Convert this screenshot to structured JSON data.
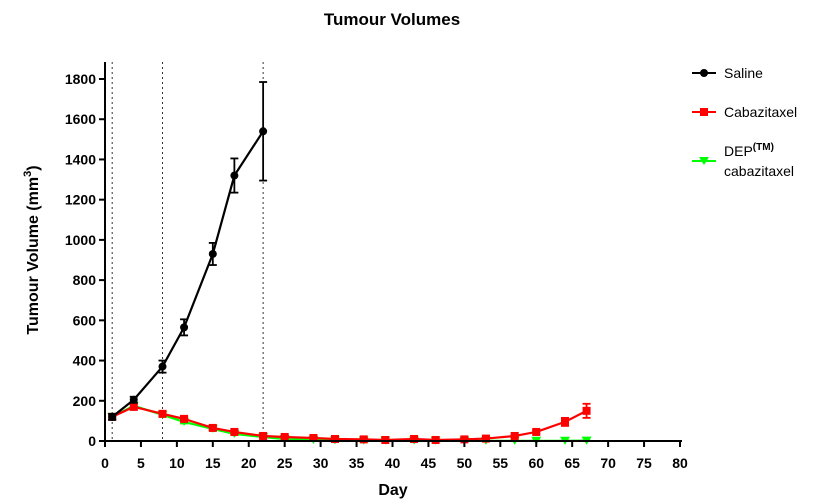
{
  "chart_data": {
    "type": "line",
    "title": "Tumour Volumes",
    "xlabel": "Day",
    "ylabel": "Tumour Volume (mm",
    "ylabel_sup": "3",
    "ylabel_close": ")",
    "xlim": [
      0,
      80
    ],
    "ylim": [
      0,
      1800
    ],
    "xticks": [
      0,
      5,
      10,
      15,
      20,
      25,
      30,
      35,
      40,
      45,
      50,
      55,
      60,
      65,
      70,
      75,
      80
    ],
    "yticks": [
      0,
      200,
      400,
      600,
      800,
      1000,
      1200,
      1400,
      1600,
      1800
    ],
    "reference_lines_x": [
      1,
      8,
      22
    ],
    "grid": false,
    "legend_position": "right",
    "series": [
      {
        "name": "Saline",
        "color": "#000000",
        "marker": "circle",
        "x": [
          1,
          4,
          8,
          11,
          15,
          18,
          22
        ],
        "y": [
          120,
          205,
          370,
          565,
          930,
          1320,
          1540
        ],
        "err": [
          15,
          15,
          30,
          40,
          55,
          85,
          245
        ]
      },
      {
        "name": "Cabazitaxel",
        "color": "#ff0000",
        "marker": "square",
        "x": [
          1,
          4,
          8,
          11,
          15,
          18,
          22,
          25,
          29,
          32,
          36,
          39,
          43,
          46,
          50,
          53,
          57,
          60,
          64,
          67
        ],
        "y": [
          120,
          170,
          135,
          110,
          65,
          45,
          25,
          20,
          15,
          10,
          8,
          5,
          10,
          5,
          8,
          12,
          25,
          45,
          95,
          150
        ],
        "err": [
          10,
          15,
          12,
          12,
          10,
          8,
          5,
          5,
          4,
          3,
          3,
          2,
          3,
          2,
          3,
          4,
          6,
          10,
          20,
          35
        ]
      },
      {
        "name": "DEP",
        "name_sup": "(TM)",
        "name_line2": "cabazitaxel",
        "color": "#00ff00",
        "marker": "triangle-down",
        "x": [
          1,
          4,
          8,
          11,
          15,
          18,
          22,
          25,
          29,
          32,
          36,
          39,
          43,
          46,
          50,
          53,
          57,
          60,
          64,
          67
        ],
        "y": [
          120,
          175,
          130,
          95,
          60,
          35,
          20,
          10,
          5,
          3,
          2,
          2,
          2,
          1,
          1,
          1,
          1,
          1,
          1,
          2
        ],
        "err": [
          8,
          10,
          10,
          8,
          6,
          4,
          3,
          2,
          1,
          1,
          1,
          1,
          1,
          1,
          1,
          1,
          1,
          1,
          1,
          1
        ]
      }
    ]
  }
}
